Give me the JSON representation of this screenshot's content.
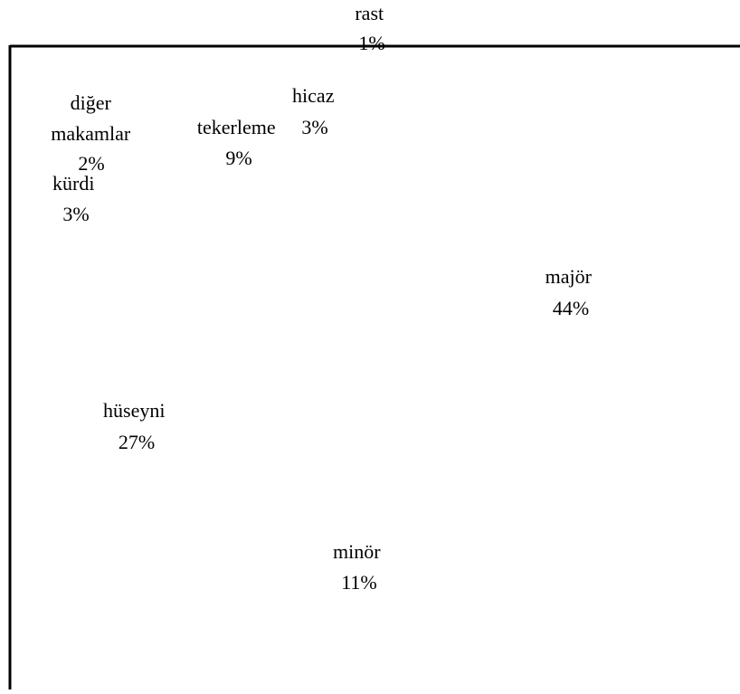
{
  "chart_data": {
    "type": "pie",
    "title": "",
    "slices": [
      {
        "label": "major",
        "display": "majör",
        "value": 44,
        "value_label": "44%"
      },
      {
        "label": "minor",
        "display": "minör",
        "value": 11,
        "value_label": "11%"
      },
      {
        "label": "huseyni",
        "display": "hüseyni",
        "value": 27,
        "value_label": "27%"
      },
      {
        "label": "kurdi",
        "display": "kürdi",
        "value": 3,
        "value_label": "3%"
      },
      {
        "label": "diger",
        "display": "diğer makamlar",
        "value": 2,
        "value_label": "2%"
      },
      {
        "label": "tekerleme",
        "display": "tekerleme",
        "value": 9,
        "value_label": "9%"
      },
      {
        "label": "hicaz",
        "display": "hicaz",
        "value": 3,
        "value_label": "3%"
      },
      {
        "label": "rast",
        "display": "rast",
        "value": 1,
        "value_label": "1%"
      }
    ],
    "legend": "none",
    "data_labels": "category and percent"
  }
}
